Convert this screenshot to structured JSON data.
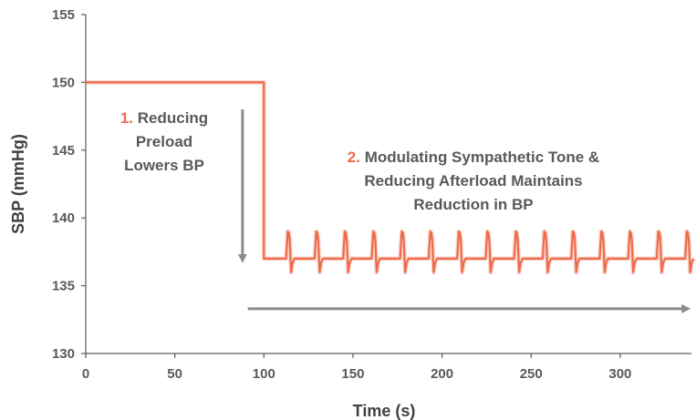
{
  "chart_data": {
    "type": "line",
    "title": "",
    "xlabel": "Time (s)",
    "ylabel": "SBP (mmHg)",
    "xlim": [
      0,
      340
    ],
    "ylim": [
      130,
      155
    ],
    "xticks": [
      0,
      50,
      100,
      150,
      200,
      250,
      300
    ],
    "yticks": [
      130,
      135,
      140,
      145,
      150,
      155
    ],
    "grid": false,
    "legend": "none",
    "series": [
      {
        "color": "#ED6A4A",
        "segments": [
          {
            "x": [
              0,
              100
            ],
            "y": [
              150,
              150
            ],
            "shape": "flat"
          },
          {
            "x_start": 100,
            "x_end": 340,
            "baseline": 137,
            "peak": 139,
            "trough": 136,
            "period": 16,
            "first_peak": 114,
            "shape": "pulsatile"
          }
        ]
      }
    ],
    "annotations": [
      {
        "number": "1.",
        "lines": [
          "Reducing",
          "Preload",
          "Lowers BP"
        ]
      },
      {
        "number": "2.",
        "lines": [
          "Modulating Sympathetic Tone &",
          "Reducing Afterload Maintains",
          "Reduction in BP"
        ]
      }
    ],
    "arrows": [
      {
        "direction": "down",
        "from": [
          88,
          148
        ],
        "to": [
          88,
          137
        ]
      },
      {
        "direction": "right",
        "from": [
          91,
          133.3
        ],
        "to": [
          337,
          133.3
        ]
      }
    ],
    "colors": {
      "series": "#ED6A4A",
      "arrow": "#8C8C8C",
      "axis": "#595959",
      "text": "#595959",
      "accent": "#ED6A4A"
    }
  }
}
